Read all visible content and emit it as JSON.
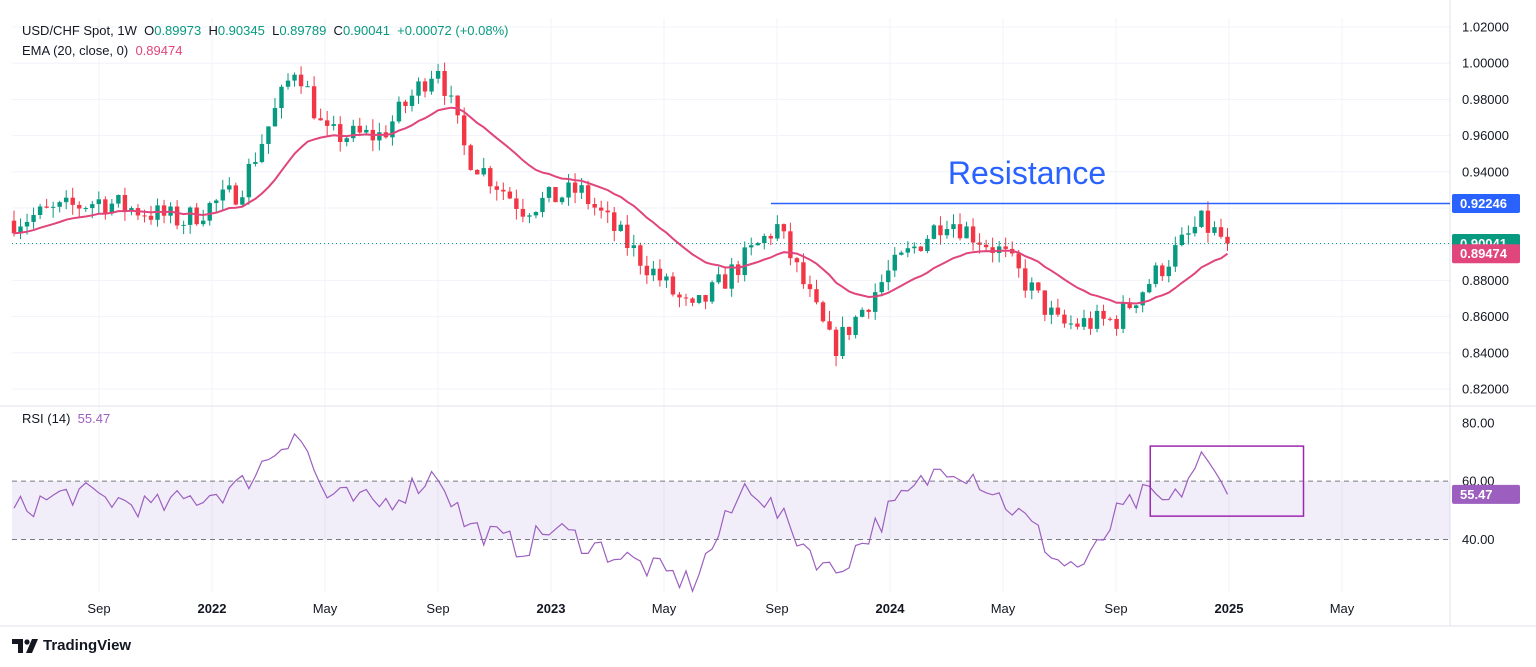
{
  "header": {
    "symbol": "USD/CHF Spot, 1W",
    "o_label": "O",
    "o": "0.89973",
    "h_label": "H",
    "h": "0.90345",
    "l_label": "L",
    "l": "0.89789",
    "c_label": "C",
    "c": "0.90041",
    "change": "+0.00072 (+0.08%)",
    "ema_label": "EMA (20, close, 0)",
    "ema_value": "0.89474",
    "rsi_label": "RSI (14)",
    "rsi_value": "55.47"
  },
  "brand": {
    "name": "TradingView"
  },
  "colors": {
    "up": "#089981",
    "down": "#f23645",
    "ema": "#e0457b",
    "rsi": "#9c5fbf",
    "resistance": "#2962ff",
    "box": "#9c27b0",
    "current": "#089981"
  },
  "chart_data": [
    {
      "type": "candlestick",
      "title": "USD/CHF Spot, 1W",
      "x_ticks": [
        "Sep",
        "2022",
        "May",
        "Sep",
        "2023",
        "May",
        "Sep",
        "2024",
        "May",
        "Sep",
        "2025",
        "May"
      ],
      "y_ticks": [
        "1.02000",
        "1.00000",
        "0.98000",
        "0.96000",
        "0.94000",
        "0.92000",
        "0.90000",
        "0.88000",
        "0.86000",
        "0.84000",
        "0.82000"
      ],
      "ylim": [
        0.815,
        1.025
      ],
      "ohlc_anchor_closes": [
        [
          "2021-07",
          0.913
        ],
        [
          "2021-10",
          0.924
        ],
        [
          "2022-01",
          0.913
        ],
        [
          "2022-03",
          0.93
        ],
        [
          "2022-05",
          1.0
        ],
        [
          "2022-06",
          0.96
        ],
        [
          "2022-08",
          0.96
        ],
        [
          "2022-10",
          1.0
        ],
        [
          "2022-11",
          0.95
        ],
        [
          "2023-01",
          0.92
        ],
        [
          "2023-03",
          0.93
        ],
        [
          "2023-05",
          0.895
        ],
        [
          "2023-07",
          0.862
        ],
        [
          "2023-10",
          0.91
        ],
        [
          "2023-12",
          0.842
        ],
        [
          "2024-02",
          0.885
        ],
        [
          "2024-04",
          0.915
        ],
        [
          "2024-06",
          0.895
        ],
        [
          "2024-08",
          0.855
        ],
        [
          "2024-10",
          0.858
        ],
        [
          "2025-01",
          0.912
        ],
        [
          "2025-02",
          0.90041
        ]
      ],
      "ema": {
        "name": "EMA (20, close, 0)",
        "last": 0.89474
      },
      "resistance": {
        "label": "Resistance",
        "value": 0.92246,
        "value_label": "0.92246",
        "start": "2023-09"
      },
      "price_tags": [
        {
          "label": "0.92246",
          "value": 0.92246,
          "color": "#2962ff"
        },
        {
          "label": "0.90041",
          "value": 0.90041,
          "color": "#089981"
        },
        {
          "label": "0.89474",
          "value": 0.89474,
          "color": "#e0457b"
        }
      ]
    },
    {
      "type": "line",
      "title": "RSI (14)",
      "y_ticks": [
        "80.00",
        "60.00",
        "40.00"
      ],
      "ylim": [
        22,
        83
      ],
      "band": [
        40,
        60
      ],
      "last": 55.47,
      "last_label": "55.47",
      "anchor_values": [
        [
          "2021-07",
          50
        ],
        [
          "2021-09",
          56
        ],
        [
          "2021-12",
          51
        ],
        [
          "2022-03",
          58
        ],
        [
          "2022-05",
          78
        ],
        [
          "2022-06",
          55
        ],
        [
          "2022-08",
          52
        ],
        [
          "2022-10",
          63
        ],
        [
          "2022-11",
          45
        ],
        [
          "2023-01",
          37
        ],
        [
          "2023-02",
          44
        ],
        [
          "2023-05",
          32
        ],
        [
          "2023-07",
          25
        ],
        [
          "2023-09",
          60
        ],
        [
          "2023-11",
          38
        ],
        [
          "2023-12",
          28
        ],
        [
          "2024-02",
          50
        ],
        [
          "2024-04",
          66
        ],
        [
          "2024-05",
          62
        ],
        [
          "2024-07",
          45
        ],
        [
          "2024-08",
          32
        ],
        [
          "2024-09",
          31
        ],
        [
          "2024-10",
          48
        ],
        [
          "2024-11",
          55
        ],
        [
          "2024-12",
          52
        ],
        [
          "2025-01",
          68
        ],
        [
          "2025-02",
          55.47
        ]
      ],
      "highlight_box": {
        "from": "2024-10",
        "to": "2025-03",
        "ymin": 48,
        "ymax": 72
      }
    }
  ]
}
